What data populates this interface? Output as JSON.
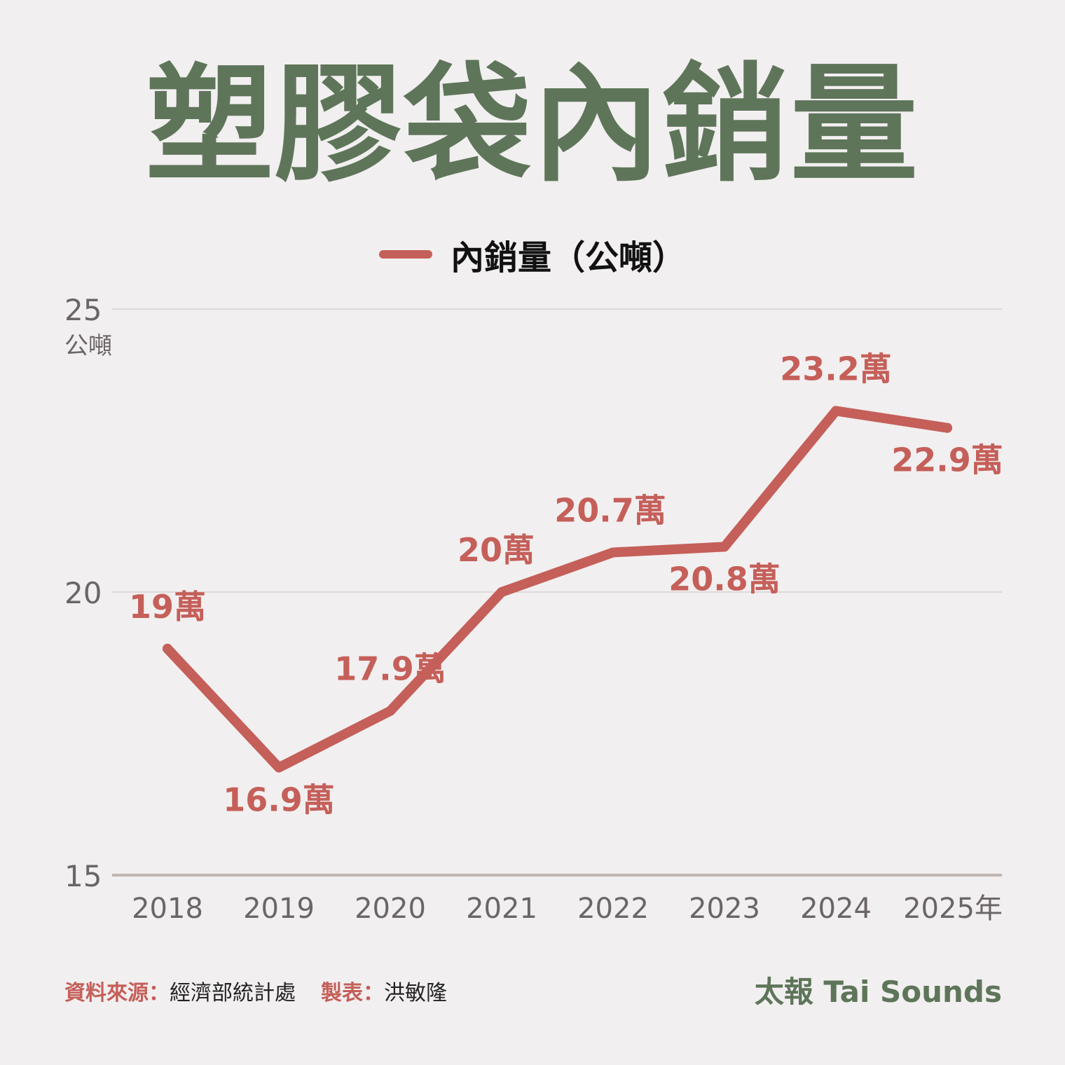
{
  "title": "塑膠袋內銷量",
  "legend": {
    "label": "內銷量（公噸）"
  },
  "colors": {
    "title": "#5e7559",
    "line": "#c55f59",
    "axis": "#6b6566",
    "grid": "#d8d2d3",
    "baseline": "#bfb6b2"
  },
  "chart_data": {
    "type": "line",
    "categories": [
      "2018",
      "2019",
      "2020",
      "2021",
      "2022",
      "2023",
      "2024",
      "2025年"
    ],
    "series": [
      {
        "name": "內銷量（公噸）",
        "values": [
          19,
          16.9,
          17.9,
          20,
          20.7,
          20.8,
          23.2,
          22.9
        ]
      }
    ],
    "data_labels": [
      "19萬",
      "16.9萬",
      "17.9萬",
      "20萬",
      "20.7萬",
      "20.8萬",
      "23.2萬",
      "22.9萬"
    ],
    "label_position": [
      "above",
      "below",
      "above",
      "above",
      "above",
      "below",
      "above",
      "below"
    ],
    "yticks": [
      15,
      20,
      25
    ],
    "ylim": [
      15,
      25
    ],
    "yunit": "公噸",
    "grid": true
  },
  "footer": {
    "source_key": "資料來源：",
    "source_value": "經濟部統計處",
    "maker_key": "製表：",
    "maker_value": "洪敏隆",
    "brand": "太報 Tai Sounds"
  }
}
